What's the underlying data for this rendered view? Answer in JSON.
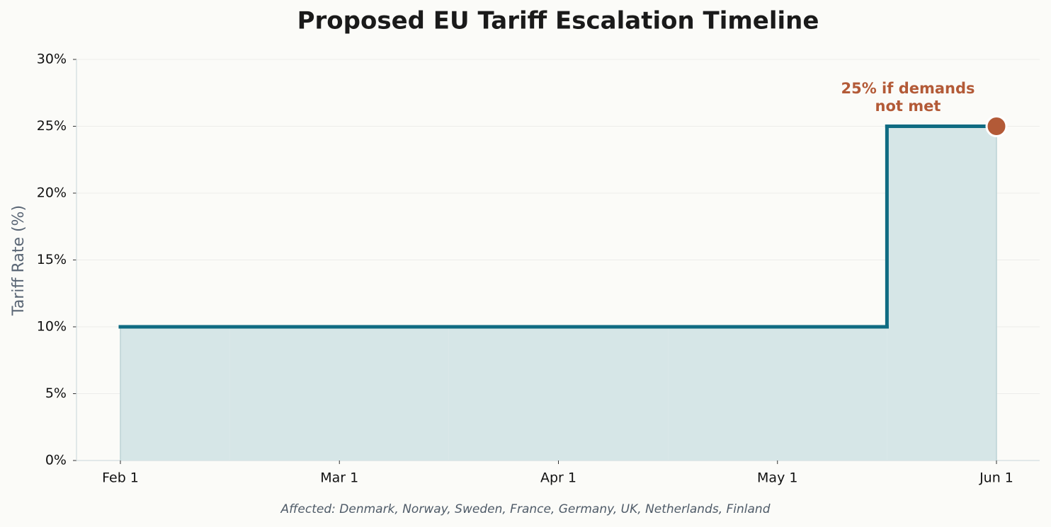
{
  "chart_data": {
    "type": "step",
    "title": "Proposed EU Tariff Escalation Timeline",
    "y_label": "Tariff Rate (%)",
    "footnote": "Affected: Denmark, Norway, Sweden, France, Germany, UK, Netherlands, Finland",
    "categories": [
      "Feb 1",
      "Mar 1",
      "Apr 1",
      "May 1",
      "Jun 1"
    ],
    "values": [
      10,
      10,
      10,
      10,
      25
    ],
    "step": "mid",
    "color": "#0f6b82",
    "fill_color": "#d6e6e7",
    "ylim": [
      0,
      30
    ],
    "yticks": [
      {
        "value": 0,
        "label": "0%"
      },
      {
        "value": 5,
        "label": "5%"
      },
      {
        "value": 10,
        "label": "10%"
      },
      {
        "value": 15,
        "label": "15%"
      },
      {
        "value": 20,
        "label": "20%"
      },
      {
        "value": 25,
        "label": "25%"
      },
      {
        "value": 30,
        "label": "30%"
      }
    ],
    "grid": true,
    "annotation": {
      "text": "25% if demands\nnot met",
      "index": 4,
      "color": "#b35a37"
    }
  }
}
